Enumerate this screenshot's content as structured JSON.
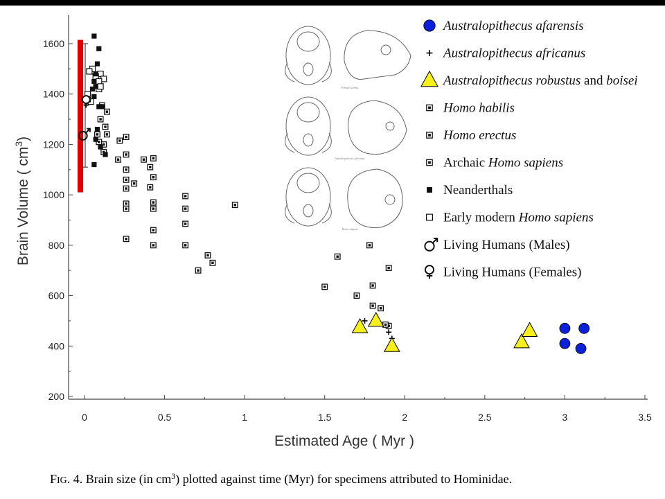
{
  "chart_data": {
    "type": "scatter",
    "ylabel_main": "Brain Volume  ( cm",
    "ylabel_sup": "3",
    "ylabel_end": ")",
    "xlabel": "Estimated Age ( Myr )",
    "xlim": [
      -0.05,
      3.5
    ],
    "ylim": [
      200,
      1700
    ],
    "xticks": [
      "0",
      "0.5",
      "1",
      "1.5",
      "2",
      "2.5",
      "3",
      "3.5"
    ],
    "xtick_values": [
      0,
      0.5,
      1,
      1.5,
      2,
      2.5,
      3,
      3.5
    ],
    "yticks": [
      "200",
      "400",
      "600",
      "800",
      "1000",
      "1200",
      "1400",
      "1600"
    ],
    "ytick_values": [
      200,
      400,
      600,
      800,
      1000,
      1200,
      1400,
      1600
    ],
    "living_range": {
      "low": 1010,
      "high": 1615,
      "color": "#e00000"
    },
    "series": [
      {
        "legend": "Australopithecus afarensis",
        "marker": "blue-circle",
        "color": "#0b20d8",
        "points": [
          [
            3.0,
            470
          ],
          [
            3.12,
            470
          ],
          [
            3.0,
            410
          ],
          [
            3.1,
            390
          ]
        ]
      },
      {
        "legend": "Australopithecus africanus",
        "marker": "plus",
        "points": [
          [
            1.75,
            500
          ],
          [
            1.9,
            455
          ],
          [
            1.92,
            430
          ]
        ]
      },
      {
        "legend": "Australopithecus robustus and boisei",
        "marker": "yellow-triangle",
        "color": "#f5ef1a",
        "points": [
          [
            1.72,
            475
          ],
          [
            1.82,
            500
          ],
          [
            1.92,
            400
          ],
          [
            2.73,
            415
          ],
          [
            2.78,
            460
          ]
        ]
      },
      {
        "legend": "Homo habilis",
        "marker": "square-dot",
        "points": [
          [
            1.5,
            635
          ],
          [
            1.58,
            755
          ],
          [
            1.7,
            600
          ],
          [
            1.78,
            800
          ],
          [
            1.8,
            640
          ],
          [
            1.8,
            560
          ],
          [
            1.85,
            550
          ],
          [
            1.9,
            710
          ],
          [
            1.9,
            480
          ],
          [
            1.88,
            485
          ]
        ]
      },
      {
        "legend": "Homo erectus",
        "marker": "square-dot",
        "points": [
          [
            0.94,
            960
          ],
          [
            0.8,
            730
          ],
          [
            0.77,
            760
          ],
          [
            0.71,
            700
          ],
          [
            0.63,
            995
          ],
          [
            0.63,
            945
          ],
          [
            0.63,
            885
          ],
          [
            0.63,
            800
          ],
          [
            0.43,
            1145
          ],
          [
            0.43,
            1070
          ],
          [
            0.43,
            970
          ],
          [
            0.43,
            945
          ],
          [
            0.43,
            860
          ],
          [
            0.43,
            800
          ],
          [
            0.41,
            1110
          ],
          [
            0.41,
            1030
          ],
          [
            0.37,
            1140
          ],
          [
            0.31,
            1045
          ],
          [
            0.26,
            1230
          ],
          [
            0.26,
            1160
          ],
          [
            0.26,
            1100
          ],
          [
            0.26,
            1060
          ],
          [
            0.26,
            1025
          ],
          [
            0.26,
            965
          ],
          [
            0.26,
            945
          ],
          [
            0.26,
            825
          ],
          [
            0.22,
            1215
          ],
          [
            0.21,
            1140
          ]
        ]
      },
      {
        "legend": "Archaic Homo sapiens",
        "marker": "square-dot",
        "points": [
          [
            0.14,
            1240
          ],
          [
            0.14,
            1330
          ],
          [
            0.13,
            1270
          ],
          [
            0.12,
            1200
          ],
          [
            0.12,
            1170
          ],
          [
            0.11,
            1355
          ],
          [
            0.1,
            1300
          ],
          [
            0.09,
            1210
          ],
          [
            0.08,
            1240
          ]
        ]
      },
      {
        "legend": "Neanderthals",
        "marker": "filled-square",
        "points": [
          [
            0.06,
            1630
          ],
          [
            0.09,
            1580
          ],
          [
            0.08,
            1520
          ],
          [
            0.07,
            1480
          ],
          [
            0.06,
            1450
          ],
          [
            0.07,
            1430
          ],
          [
            0.05,
            1420
          ],
          [
            0.06,
            1390
          ],
          [
            0.09,
            1350
          ],
          [
            0.11,
            1350
          ],
          [
            0.08,
            1260
          ],
          [
            0.07,
            1220
          ],
          [
            0.1,
            1190
          ],
          [
            0.13,
            1160
          ],
          [
            0.06,
            1120
          ]
        ]
      },
      {
        "legend": "Early modern Homo sapiens",
        "marker": "open-square",
        "points": [
          [
            0.05,
            1500
          ],
          [
            0.03,
            1490
          ],
          [
            0.1,
            1480
          ],
          [
            0.07,
            1470
          ],
          [
            0.12,
            1460
          ],
          [
            0.09,
            1450
          ],
          [
            0.09,
            1420
          ],
          [
            0.1,
            1430
          ],
          [
            0.02,
            1400
          ],
          [
            0.04,
            1370
          ],
          [
            0.02,
            1380
          ]
        ]
      },
      {
        "legend": "Living Humans (Males)",
        "marker": "male",
        "points": [
          [
            -0.01,
            1240
          ]
        ]
      },
      {
        "legend": "Living Humans (Females)",
        "marker": "female",
        "points": [
          [
            0.01,
            1370
          ]
        ]
      }
    ]
  },
  "legend": [
    {
      "italic": "Australopithecus afarensis",
      "rest": "",
      "marker": "blue-circle"
    },
    {
      "italic": "Australopithecus africanus",
      "rest": "",
      "marker": "plus"
    },
    {
      "italic": "Australopithecus robustus",
      "rest": " and ",
      "italic2": "boisei",
      "marker": "yellow-triangle"
    },
    {
      "italic": "Homo habilis",
      "rest": "",
      "marker": "square-dot"
    },
    {
      "italic": "Homo erectus",
      "rest": "",
      "marker": "square-dot"
    },
    {
      "prefix": "Archaic ",
      "italic": "Homo sapiens",
      "marker": "square-dot"
    },
    {
      "prefix": "Neanderthals",
      "italic": "",
      "marker": "filled-square"
    },
    {
      "prefix": "Early modern ",
      "italic": "Homo sapiens",
      "marker": "open-square"
    },
    {
      "prefix": "Living Humans (Males)",
      "italic": "",
      "marker": "male"
    },
    {
      "prefix": "Living Humans (Females)",
      "italic": "",
      "marker": "female"
    }
  ],
  "skull_labels": [
    "Female Gorilla",
    "Australopithecus africanus",
    "Homo sapiens"
  ],
  "caption": {
    "fig": "F",
    "fig_small": "IG",
    "rest": ". 4.   Brain size (in cm",
    "sup": "3",
    "end": ") plotted against time (Myr) for specimens attributed to Hominidae."
  }
}
